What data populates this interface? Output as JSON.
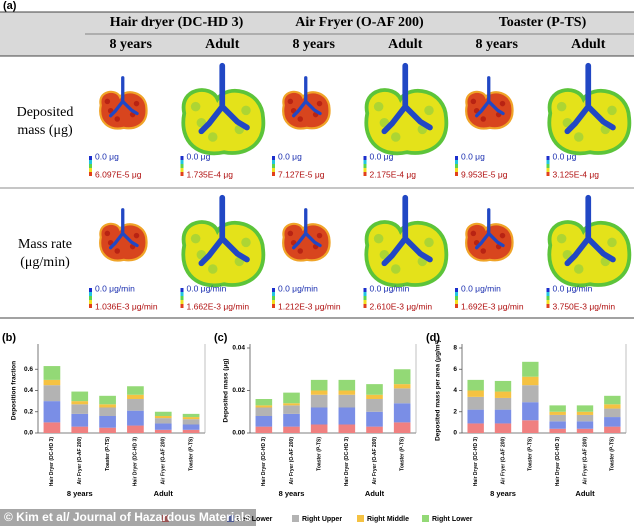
{
  "figure_a": {
    "panel": "(a)",
    "devices": [
      "Hair dryer (DC-HD 3)",
      "Air Fryer (O-AF 200)",
      "Toaster (P-TS)"
    ],
    "ages": [
      "8 years",
      "Adult",
      "8 years",
      "Adult",
      "8 years",
      "Adult"
    ],
    "rows": [
      {
        "label": "Deposited mass (μg)",
        "scale_min": "0.0 μg",
        "scale_max": [
          "6.097E-5 μg",
          "1.735E-4 μg",
          "7.127E-5 μg",
          "2.175E-4 μg",
          "9.953E-5 μg",
          "3.125E-4 μg"
        ]
      },
      {
        "label": "Mass rate (μg/min)",
        "scale_min": "0.0 μg/min",
        "scale_max": [
          "1.036E-3 μg/min",
          "1.662E-3 μg/min",
          "1.212E-3 μg/min",
          "2.610E-3 μg/min",
          "1.692E-3 μg/min",
          "3.750E-3 μg/min"
        ]
      }
    ]
  },
  "chart_data": [
    {
      "type": "bar",
      "stacked": true,
      "panel": "(b)",
      "y_label": "Deposition fraction",
      "categories": [
        "Hair Dryer (DC-HD 3)",
        "Air Fryer (O-AF 200)",
        "Toaster (P-TS)",
        "Hair Dryer (DC-HD 3)",
        "Air Fryer (O-AF 200)",
        "Toaster (P-TS)"
      ],
      "groups": [
        "8 years",
        "Adult"
      ],
      "ylim": [
        0,
        0.8
      ],
      "yticks": [
        {
          "value": 0,
          "label": "0.0"
        },
        0.2,
        0.4,
        0.6
      ],
      "series": [
        {
          "color": "#f08080",
          "values": [
            0.1,
            0.06,
            0.05,
            0.07,
            0.03,
            0.03
          ]
        },
        {
          "name": "Left Lower",
          "color": "#7a8ee6",
          "values": [
            0.2,
            0.12,
            0.11,
            0.14,
            0.06,
            0.05
          ]
        },
        {
          "name": "Right Upper",
          "color": "#b3b3b3",
          "values": [
            0.15,
            0.09,
            0.08,
            0.11,
            0.05,
            0.05
          ]
        },
        {
          "name": "Right Middle",
          "color": "#f5c242",
          "values": [
            0.05,
            0.03,
            0.03,
            0.04,
            0.02,
            0.02
          ]
        },
        {
          "name": "Right Lower",
          "color": "#93d976",
          "values": [
            0.13,
            0.09,
            0.08,
            0.08,
            0.04,
            0.03
          ]
        }
      ]
    },
    {
      "type": "bar",
      "stacked": true,
      "panel": "(c)",
      "y_label": "Deposited mass (μg)",
      "categories": [
        "Hair Dryer (DC-HD 3)",
        "Air Fryer (O-AF 200)",
        "Toaster (P-TS)",
        "Hair Dryer (DC-HD 3)",
        "Air Fryer (O-AF 200)",
        "Toaster (P-TS)"
      ],
      "groups": [
        "8 years",
        "Adult"
      ],
      "ylim": [
        0,
        0.04
      ],
      "yticks": [
        {
          "value": 0,
          "label": "0.00"
        },
        0.02,
        0.04
      ],
      "series": [
        {
          "color": "#f08080",
          "values": [
            0.003,
            0.003,
            0.004,
            0.004,
            0.003,
            0.005
          ]
        },
        {
          "name": "Left Lower",
          "color": "#7a8ee6",
          "values": [
            0.005,
            0.006,
            0.008,
            0.008,
            0.007,
            0.009
          ]
        },
        {
          "name": "Right Upper",
          "color": "#b3b3b3",
          "values": [
            0.004,
            0.004,
            0.006,
            0.006,
            0.006,
            0.007
          ]
        },
        {
          "name": "Right Middle",
          "color": "#f5c242",
          "values": [
            0.001,
            0.001,
            0.002,
            0.002,
            0.002,
            0.002
          ]
        },
        {
          "name": "Right Lower",
          "color": "#93d976",
          "values": [
            0.003,
            0.005,
            0.005,
            0.005,
            0.005,
            0.007
          ]
        }
      ]
    },
    {
      "type": "bar",
      "stacked": true,
      "panel": "(d)",
      "y_label": "Deposited mass per area (μg/m²)",
      "categories": [
        "Hair Dryer (DC-HD 3)",
        "Air Fryer (O-AF 200)",
        "Toaster (P-TS)",
        "Hair Dryer (DC-HD 3)",
        "Air Fryer (O-AF 200)",
        "Toaster (P-TS)"
      ],
      "groups": [
        "8 years",
        "Adult"
      ],
      "ylim": [
        0,
        8
      ],
      "yticks": [
        0,
        2,
        4,
        6,
        8
      ],
      "series": [
        {
          "color": "#f08080",
          "values": [
            0.9,
            0.9,
            1.2,
            0.4,
            0.4,
            0.6
          ]
        },
        {
          "name": "Left Lower",
          "color": "#7a8ee6",
          "values": [
            1.3,
            1.3,
            1.7,
            0.7,
            0.7,
            0.9
          ]
        },
        {
          "name": "Right Upper",
          "color": "#b3b3b3",
          "values": [
            1.2,
            1.1,
            1.6,
            0.6,
            0.6,
            0.8
          ]
        },
        {
          "name": "Right Middle",
          "color": "#f5c242",
          "values": [
            0.6,
            0.6,
            0.8,
            0.3,
            0.3,
            0.4
          ]
        },
        {
          "name": "Right Lower",
          "color": "#93d976",
          "values": [
            1.0,
            1.0,
            1.4,
            0.6,
            0.6,
            0.8
          ]
        }
      ]
    }
  ],
  "watermark": "© Kim et al/ Journal of Hazardous Materials"
}
